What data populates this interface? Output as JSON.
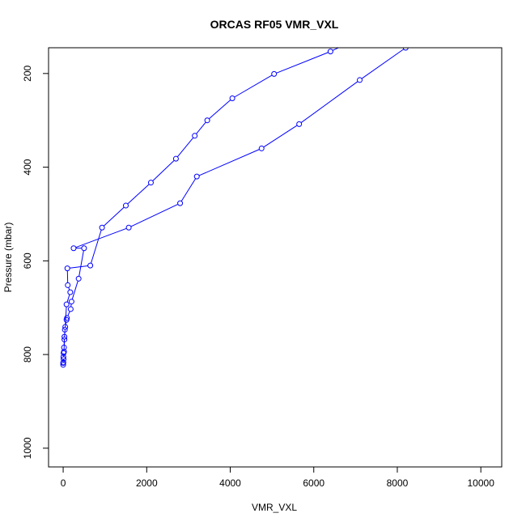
{
  "chart_data": {
    "type": "scatter",
    "title": "ORCAS RF05 VMR_VXL",
    "xlabel": "VMR_VXL",
    "ylabel": "Pressure (mbar)",
    "xlim": [
      -350,
      10500
    ],
    "ylim": [
      1040,
      145
    ],
    "y_inverted": true,
    "grid": false,
    "xticks": [
      0,
      2000,
      4000,
      6000,
      8000,
      10000
    ],
    "yticks": [
      200,
      400,
      600,
      800,
      1000
    ],
    "xtick_labels": [
      "0",
      "2000",
      "4000",
      "6000",
      "8000",
      "10000"
    ],
    "ytick_labels": [
      "200",
      "400",
      "600",
      "800",
      "1000"
    ],
    "line_color": "#0000ff",
    "marker": "open-circle",
    "series": [
      {
        "color": "#0000ff",
        "x": [
          8200,
          7100,
          5650,
          4750,
          3200,
          2800,
          1570,
          250,
          500,
          370,
          200,
          180,
          90,
          80,
          40,
          30,
          20,
          10,
          5,
          0
        ],
        "y": [
          145,
          214,
          308,
          360,
          420,
          477,
          529,
          573,
          573,
          638,
          687,
          703,
          722,
          726,
          747,
          768,
          785,
          797,
          805,
          818
        ]
      },
      {
        "color": "#0000ff",
        "x": [
          0,
          5,
          10,
          20,
          30,
          50,
          80,
          170,
          110,
          100,
          650,
          930,
          1500,
          2100,
          2700,
          3150,
          3450,
          4050,
          5050,
          6400,
          6950
        ],
        "y": [
          822,
          817,
          810,
          794,
          762,
          741,
          693,
          667,
          652,
          616,
          610,
          529,
          482,
          433,
          382,
          333,
          300,
          253,
          201,
          153,
          130
        ]
      }
    ]
  }
}
